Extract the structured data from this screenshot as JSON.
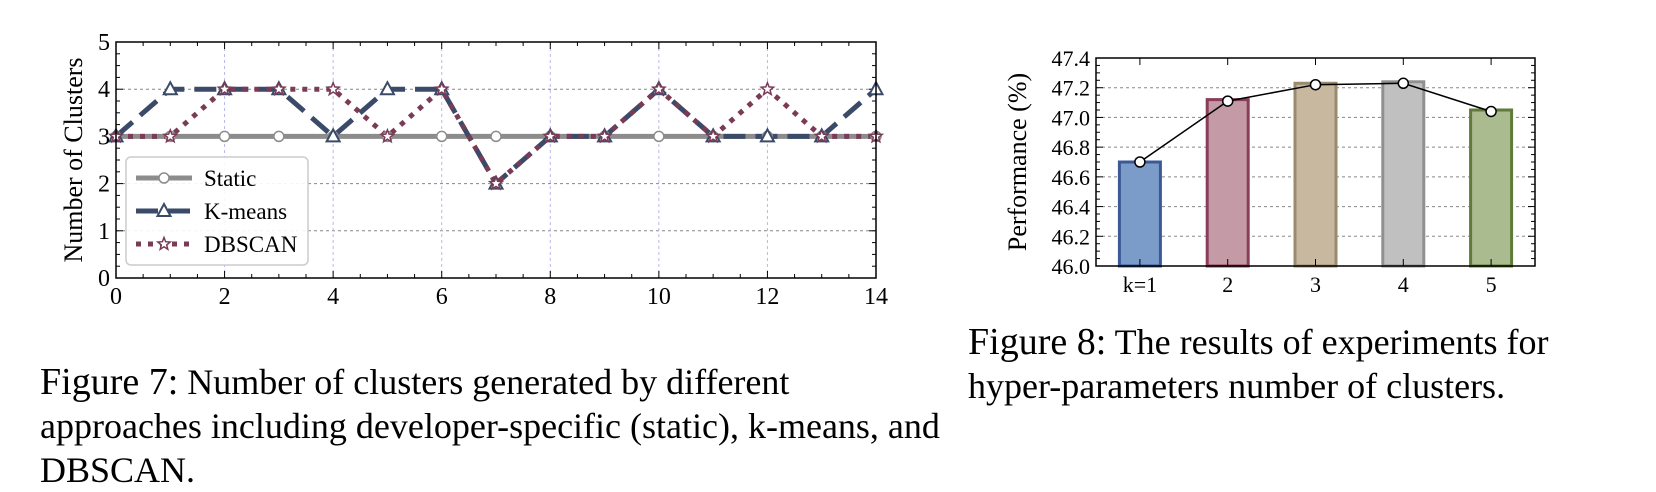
{
  "figures": {
    "fig7": {
      "caption_label": "Figure 7:",
      "caption_text": "Number of clusters generated by different approaches including developer-specific (static), k-means, and DBSCAN."
    },
    "fig8": {
      "caption_label": "Figure 8:",
      "caption_text": "The results of experiments for hyper-parameters number of clusters."
    }
  },
  "chart_data": [
    {
      "type": "line",
      "title": "",
      "xlabel": "",
      "ylabel": "Number of Clusters",
      "x": [
        0,
        1,
        2,
        3,
        4,
        5,
        6,
        7,
        8,
        9,
        10,
        11,
        12,
        13,
        14
      ],
      "xlim": [
        0,
        14
      ],
      "ylim": [
        0,
        5
      ],
      "xticks": [
        0,
        2,
        4,
        6,
        8,
        10,
        12,
        14
      ],
      "yticks": [
        0,
        1,
        2,
        3,
        4,
        5
      ],
      "grid": true,
      "legend_position": "lower-left",
      "series": [
        {
          "name": "Static",
          "values": [
            3,
            3,
            3,
            3,
            3,
            3,
            3,
            3,
            3,
            3,
            3,
            3,
            3,
            3,
            3
          ],
          "color": "#8c8c8c",
          "style": "solid",
          "marker": "circle"
        },
        {
          "name": "K-means",
          "values": [
            3,
            4,
            4,
            4,
            3,
            4,
            4,
            2,
            3,
            3,
            4,
            3,
            3,
            3,
            4
          ],
          "color": "#3a4a68",
          "style": "dashed",
          "marker": "triangle"
        },
        {
          "name": "DBSCAN",
          "values": [
            3,
            3,
            4,
            4,
            4,
            3,
            4,
            2,
            3,
            3,
            4,
            3,
            4,
            3,
            3
          ],
          "color": "#7a3b56",
          "style": "dotted",
          "marker": "star"
        }
      ]
    },
    {
      "type": "bar",
      "title": "",
      "xlabel": "",
      "ylabel": "Performance (%)",
      "categories": [
        "k=1",
        "2",
        "3",
        "4",
        "5"
      ],
      "values": [
        46.7,
        47.12,
        47.23,
        47.24,
        47.05
      ],
      "line_values": [
        46.7,
        47.11,
        47.22,
        47.23,
        47.04
      ],
      "ylim": [
        46.0,
        47.4
      ],
      "yticks": [
        "46.0",
        "46.2",
        "46.4",
        "46.6",
        "46.8",
        "47.0",
        "47.2",
        "47.4"
      ],
      "grid": true,
      "colors": [
        "#7b9bc9",
        "#c49aa7",
        "#c8b8a0",
        "#c0c0c0",
        "#a9bb8f"
      ],
      "edge_colors": [
        "#3b5a95",
        "#8a3d58",
        "#9a8a70",
        "#909090",
        "#5f7a3a"
      ]
    }
  ]
}
